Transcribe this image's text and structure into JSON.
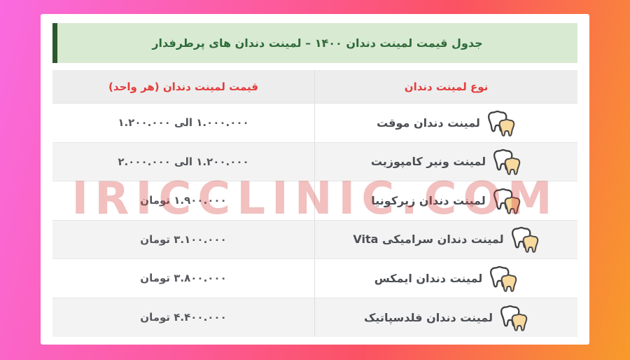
{
  "banner": {
    "title": "جدول قیمت لمینت دندان ۱۴۰۰ – لمینت دندان های پرطرفدار"
  },
  "table": {
    "columns": {
      "price": "قیمت لمینت دندان (هر واحد)",
      "type": "نوع لمینت دندان"
    },
    "rows": [
      {
        "type": "لمینت دندان موقت",
        "price": "۱.۰۰۰.۰۰۰ الی ۱.۲۰۰.۰۰۰"
      },
      {
        "type": "لمینت ونیر کامپوزیت",
        "price": "۱.۲۰۰.۰۰۰ الی ۲.۰۰۰.۰۰۰"
      },
      {
        "type": "لمینت دندان زیرکونیا",
        "price": "۱.۹۰۰.۰۰۰ تومان"
      },
      {
        "type": "لمینت دندان سرامیکی Vita",
        "price": "۳.۱۰۰.۰۰۰ تومان"
      },
      {
        "type": "لمینت دندان ایمکس",
        "price": "۳.۸۰۰.۰۰۰ تومان"
      },
      {
        "type": "لمینت دندان فلدسپاتیک",
        "price": "۴.۴۰۰.۰۰۰ تومان"
      }
    ],
    "row_icon": "tooth-icon"
  },
  "watermark": "IRICCLINIC.COM",
  "colors": {
    "frame_gradient": [
      "#fa6be0",
      "#fc5a9b",
      "#fb5263",
      "#f89b2a"
    ],
    "banner_bg": "#d9ead2",
    "banner_bar": "#2d572c",
    "banner_text": "#2e6b3a",
    "column_header_text": "#e23d3b",
    "header_row_bg": "#ededed",
    "alt_row_bg": "#f3f3f3",
    "row_text": "#4b4e53",
    "watermark_color": "rgba(211,60,55,0.32)",
    "tooth_fill": "#f8d99e"
  }
}
